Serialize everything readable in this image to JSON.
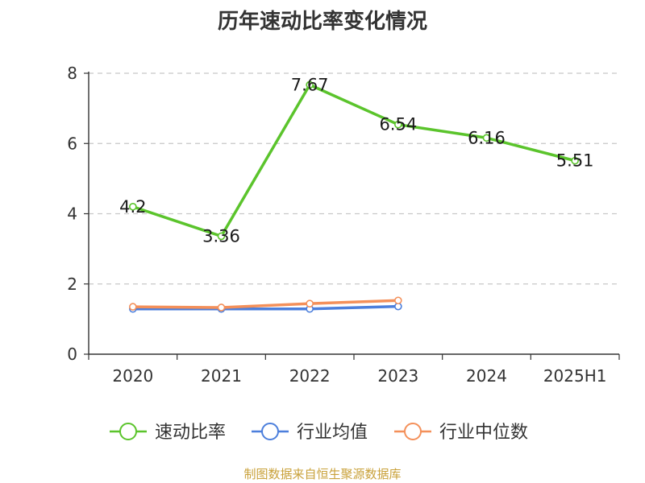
{
  "chart_data": {
    "type": "line",
    "title": "历年速动比率变化情况",
    "categories": [
      "2020",
      "2021",
      "2022",
      "2023",
      "2024",
      "2025H1"
    ],
    "ylim": [
      0,
      8
    ],
    "yticks": [
      0,
      2,
      4,
      6,
      8
    ],
    "grid": true,
    "legend_position": "bottom",
    "series": [
      {
        "name": "速动比率",
        "color": "#5bc42c",
        "values": [
          4.2,
          3.36,
          7.67,
          6.54,
          6.16,
          5.51
        ],
        "labels": [
          "4.2",
          "3.36",
          "7.67",
          "6.54",
          "6.16",
          "5.51"
        ]
      },
      {
        "name": "行业均值",
        "color": "#4c7fdc",
        "values": [
          1.29,
          1.29,
          1.29,
          1.36,
          null,
          null
        ]
      },
      {
        "name": "行业中位数",
        "color": "#f4905a",
        "values": [
          1.35,
          1.33,
          1.44,
          1.53,
          null,
          null
        ]
      }
    ]
  },
  "source": "制图数据来自恒生聚源数据库"
}
